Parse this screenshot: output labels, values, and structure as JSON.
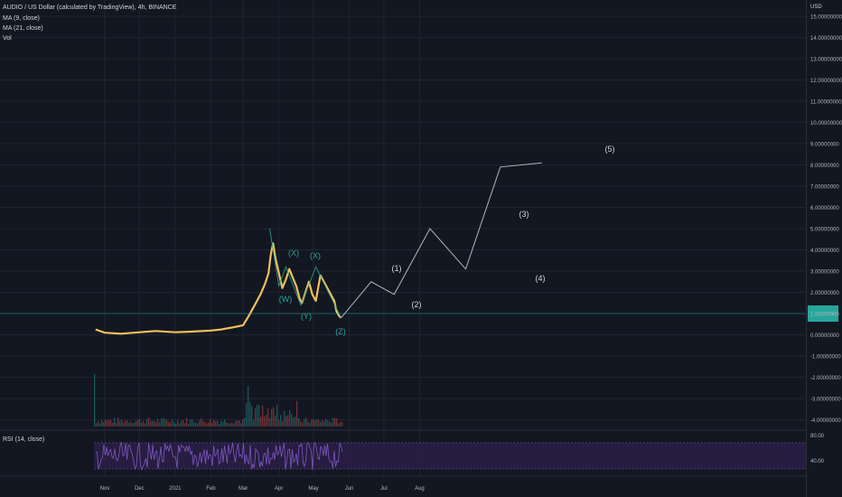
{
  "header": {
    "title": "AUDIO / US Dollar (calculated by TradingView), 4h, BINANCE",
    "indicators": [
      "MA (9, close)",
      "MA (21, close)",
      "Vol"
    ],
    "rsi_label": "RSI (14, close)",
    "currency": "USD"
  },
  "colors": {
    "background": "#131722",
    "grid": "#1f2430",
    "price_line": "#f0c05a",
    "wave_line": "#b2b5be",
    "teal": "#26a69a",
    "rsi_line": "#7e57c2",
    "rsi_band": "#2a1f45"
  },
  "chart_data": [
    {
      "type": "line",
      "title": "AUDIO / US Dollar (calculated by TradingView), 4h, BINANCE",
      "y_axis": {
        "min": -4,
        "max": 15,
        "ticks": [
          15,
          14,
          13,
          12,
          11,
          10,
          9,
          8,
          7,
          6,
          5,
          4,
          3,
          2,
          1,
          0,
          -1,
          -2,
          -3,
          -4
        ],
        "tick_labels": [
          "15.00000000",
          "14.00000000",
          "13.00000000",
          "12.00000000",
          "11.00000000",
          "10.00000000",
          "9.00000000",
          "8.00000000",
          "7.00000000",
          "6.00000000",
          "5.00000000",
          "4.00000000",
          "3.00000000",
          "2.00000000",
          "1.00000000",
          "0.00000000",
          "-1.00000000",
          "-2.00000000",
          "-3.00000000",
          "-4.00000000"
        ]
      },
      "x_axis": {
        "labels": [
          "Nov",
          "Dec",
          "2021",
          "Feb",
          "Mar",
          "Apr",
          "May",
          "Jun",
          "Jul",
          "Aug"
        ],
        "ticks": [
          "2020-11-01",
          "2020-12-01",
          "2021-01-01",
          "2021-02-01",
          "2021-03-01",
          "2021-04-01",
          "2021-05-01",
          "2021-06-01",
          "2021-07-01",
          "2021-08-01"
        ]
      },
      "grid": true,
      "series": [
        {
          "id": "price",
          "x": [
            "2020-10-24",
            "2020-11-01",
            "2020-11-15",
            "2020-12-01",
            "2020-12-15",
            "2021-01-01",
            "2021-01-15",
            "2021-02-01",
            "2021-02-10",
            "2021-02-20",
            "2021-03-01",
            "2021-03-06",
            "2021-03-12",
            "2021-03-16",
            "2021-03-20",
            "2021-03-23",
            "2021-03-25",
            "2021-03-27",
            "2021-03-29",
            "2021-04-01",
            "2021-04-04",
            "2021-04-07",
            "2021-04-10",
            "2021-04-13",
            "2021-04-16",
            "2021-04-19",
            "2021-04-21",
            "2021-04-24",
            "2021-04-27",
            "2021-04-30",
            "2021-05-03",
            "2021-05-05",
            "2021-05-07",
            "2021-05-10",
            "2021-05-13",
            "2021-05-16",
            "2021-05-19",
            "2021-05-21",
            "2021-05-23",
            "2021-05-25"
          ],
          "values": [
            0.25,
            0.1,
            0.05,
            0.12,
            0.18,
            0.12,
            0.15,
            0.2,
            0.25,
            0.35,
            0.45,
            0.9,
            1.5,
            1.9,
            2.4,
            2.9,
            3.8,
            4.3,
            3.6,
            2.9,
            2.2,
            2.6,
            3.1,
            2.7,
            2.3,
            1.7,
            1.5,
            2.0,
            2.5,
            1.9,
            1.6,
            2.2,
            2.8,
            2.5,
            2.2,
            1.9,
            1.6,
            1.1,
            0.9,
            0.8
          ]
        }
      ],
      "wave_projection": {
        "x": [
          "2021-05-25",
          "2021-06-20",
          "2021-07-10",
          "2021-08-10",
          "2021-09-10",
          "2021-10-10",
          "2021-11-15"
        ],
        "values": [
          0.8,
          2.5,
          1.9,
          5.0,
          3.1,
          7.9,
          8.1
        ],
        "labels": [
          "(1)",
          "(2)",
          "(3)",
          "(4)",
          "(5)"
        ]
      },
      "wxy_labels": [
        "(W)",
        "(X)",
        "(Y)",
        "(X)",
        "(Z)"
      ],
      "current_price_marker": true
    },
    {
      "type": "line",
      "title": "RSI (14, close)",
      "y_axis": {
        "ticks": [
          80,
          40
        ],
        "tick_labels": [
          "80.00",
          "40.00"
        ]
      },
      "band": [
        30,
        70
      ]
    }
  ]
}
